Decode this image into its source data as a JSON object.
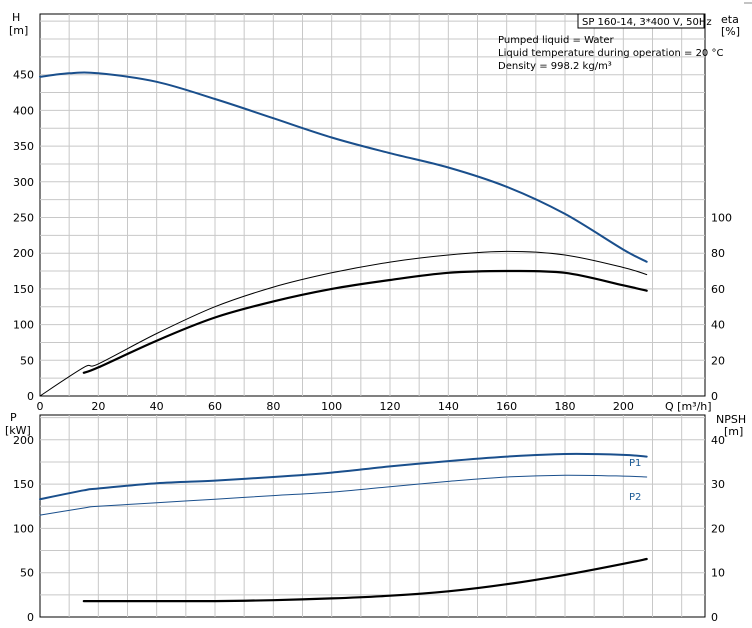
{
  "header": {
    "title": "SP 160-14, 3*400 V, 50Hz",
    "info_lines": [
      "Pumped liquid = Water",
      "Liquid temperature during operation = 20 °C",
      "Density = 998.2 kg/m³"
    ]
  },
  "colors": {
    "curve_blue": "#1a4f8c",
    "curve_black": "#000000",
    "grid": "#c8c8c8",
    "axis": "#000000"
  },
  "chart_data": [
    {
      "type": "line",
      "name": "head-efficiency-chart",
      "x_axis": {
        "label": "Q [m³/h]",
        "ticks": [
          0,
          20,
          40,
          60,
          80,
          100,
          120,
          140,
          160,
          180,
          200
        ],
        "range": [
          0,
          228
        ]
      },
      "y_left": {
        "label_line1": "H",
        "label_line2": "[m]",
        "ticks": [
          0,
          50,
          100,
          150,
          200,
          250,
          300,
          350,
          400,
          450
        ],
        "range": [
          0,
          535
        ]
      },
      "y_right": {
        "label_line1": "eta",
        "label_line2": "[%]",
        "ticks": [
          0,
          20,
          40,
          60,
          80,
          100
        ],
        "range": [
          0,
          214
        ]
      },
      "grid": true,
      "series": [
        {
          "key": "H",
          "axis": "left",
          "color": "#1a4f8c",
          "width": 2,
          "x": [
            0,
            10,
            20,
            40,
            60,
            80,
            100,
            120,
            140,
            160,
            180,
            200,
            208
          ],
          "y": [
            447,
            452,
            452,
            440,
            416,
            389,
            362,
            340,
            320,
            293,
            255,
            205,
            188
          ]
        },
        {
          "key": "eta",
          "axis": "right",
          "color": "#000000",
          "width": 1,
          "x": [
            0,
            15,
            20,
            40,
            60,
            80,
            100,
            120,
            140,
            160,
            180,
            200,
            208
          ],
          "y": [
            0,
            16,
            18,
            35,
            50,
            61,
            69,
            75,
            79,
            81,
            79,
            72,
            68
          ]
        },
        {
          "key": "eta2",
          "axis": "right",
          "color": "#000000",
          "width": 2.2,
          "x": [
            15,
            20,
            40,
            60,
            80,
            100,
            120,
            140,
            160,
            180,
            200,
            208
          ],
          "y": [
            13,
            16,
            31,
            44,
            53,
            60,
            65,
            69,
            70,
            69,
            62,
            59
          ]
        }
      ]
    },
    {
      "type": "line",
      "name": "power-npsh-chart",
      "x_axis": {
        "range": [
          0,
          228
        ]
      },
      "y_left": {
        "label_line1": "P",
        "label_line2": "[kW]",
        "ticks": [
          0,
          50,
          100,
          150,
          200
        ],
        "range": [
          0,
          228
        ]
      },
      "y_right": {
        "label_line1": "NPSH",
        "label_line2": "[m]",
        "ticks": [
          0,
          10,
          20,
          30,
          40
        ],
        "range": [
          0,
          45.6
        ]
      },
      "grid": true,
      "series": [
        {
          "key": "P1",
          "name": "P1",
          "axis": "left",
          "color": "#1a4f8c",
          "width": 2,
          "x": [
            0,
            15,
            20,
            40,
            60,
            80,
            100,
            120,
            140,
            160,
            180,
            200,
            208
          ],
          "y": [
            133,
            143,
            145,
            151,
            154,
            158,
            163,
            170,
            176,
            181,
            184,
            183,
            181
          ]
        },
        {
          "key": "P2",
          "name": "P2",
          "axis": "left",
          "color": "#1a4f8c",
          "width": 1,
          "x": [
            0,
            15,
            20,
            40,
            60,
            80,
            100,
            120,
            140,
            160,
            180,
            200,
            208
          ],
          "y": [
            115,
            123,
            125,
            129,
            133,
            137,
            141,
            147,
            153,
            158,
            160,
            159,
            158
          ]
        },
        {
          "key": "NPSH",
          "axis": "right",
          "color": "#000000",
          "width": 2.2,
          "x": [
            15,
            40,
            60,
            80,
            100,
            120,
            140,
            160,
            180,
            200,
            208
          ],
          "y": [
            3.6,
            3.6,
            3.6,
            3.8,
            4.2,
            4.8,
            5.8,
            7.4,
            9.5,
            12.0,
            13.1
          ]
        }
      ]
    }
  ]
}
